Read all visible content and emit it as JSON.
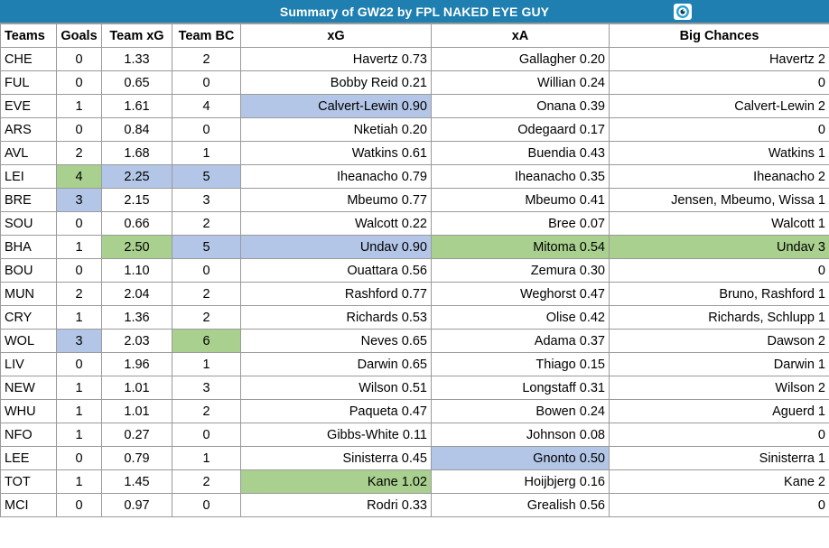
{
  "title": "Summary of GW22 by FPL NAKED EYE GUY",
  "icon": "eye-icon",
  "colors": {
    "title_bg": "#1f7fb0",
    "highlight_blue": "#b4c6e7",
    "highlight_green": "#a9d08e"
  },
  "headers": [
    "Teams",
    "Goals",
    "Team xG",
    "Team BC",
    "xG",
    "xA",
    "Big Chances"
  ],
  "rows": [
    {
      "team": "CHE",
      "goals": "0",
      "team_xg": "1.33",
      "team_bc": "2",
      "xg": "Havertz 0.73",
      "xa": "Gallagher 0.20",
      "big_chances": "Havertz 2"
    },
    {
      "team": "FUL",
      "goals": "0",
      "team_xg": "0.65",
      "team_bc": "0",
      "xg": "Bobby Reid 0.21",
      "xa": "Willian 0.24",
      "big_chances": "0"
    },
    {
      "team": "EVE",
      "goals": "1",
      "team_xg": "1.61",
      "team_bc": "4",
      "xg": "Calvert-Lewin 0.90",
      "xa": "Onana 0.39",
      "big_chances": "Calvert-Lewin 2"
    },
    {
      "team": "ARS",
      "goals": "0",
      "team_xg": "0.84",
      "team_bc": "0",
      "xg": "Nketiah 0.20",
      "xa": "Odegaard 0.17",
      "big_chances": "0"
    },
    {
      "team": "AVL",
      "goals": "2",
      "team_xg": "1.68",
      "team_bc": "1",
      "xg": "Watkins 0.61",
      "xa": "Buendia 0.43",
      "big_chances": "Watkins 1"
    },
    {
      "team": "LEI",
      "goals": "4",
      "team_xg": "2.25",
      "team_bc": "5",
      "xg": "Iheanacho 0.79",
      "xa": "Iheanacho 0.35",
      "big_chances": "Iheanacho 2"
    },
    {
      "team": "BRE",
      "goals": "3",
      "team_xg": "2.15",
      "team_bc": "3",
      "xg": "Mbeumo 0.77",
      "xa": "Mbeumo 0.41",
      "big_chances": "Jensen, Mbeumo, Wissa 1"
    },
    {
      "team": "SOU",
      "goals": "0",
      "team_xg": "0.66",
      "team_bc": "2",
      "xg": "Walcott 0.22",
      "xa": "Bree 0.07",
      "big_chances": "Walcott 1"
    },
    {
      "team": "BHA",
      "goals": "1",
      "team_xg": "2.50",
      "team_bc": "5",
      "xg": "Undav 0.90",
      "xa": "Mitoma 0.54",
      "big_chances": "Undav 3"
    },
    {
      "team": "BOU",
      "goals": "0",
      "team_xg": "1.10",
      "team_bc": "0",
      "xg": "Ouattara 0.56",
      "xa": "Zemura 0.30",
      "big_chances": "0"
    },
    {
      "team": "MUN",
      "goals": "2",
      "team_xg": "2.04",
      "team_bc": "2",
      "xg": "Rashford 0.77",
      "xa": "Weghorst 0.47",
      "big_chances": "Bruno, Rashford 1"
    },
    {
      "team": "CRY",
      "goals": "1",
      "team_xg": "1.36",
      "team_bc": "2",
      "xg": "Richards 0.53",
      "xa": "Olise 0.42",
      "big_chances": "Richards, Schlupp 1"
    },
    {
      "team": "WOL",
      "goals": "3",
      "team_xg": "2.03",
      "team_bc": "6",
      "xg": "Neves 0.65",
      "xa": "Adama 0.37",
      "big_chances": "Dawson 2"
    },
    {
      "team": "LIV",
      "goals": "0",
      "team_xg": "1.96",
      "team_bc": "1",
      "xg": "Darwin 0.65",
      "xa": "Thiago 0.15",
      "big_chances": "Darwin 1"
    },
    {
      "team": "NEW",
      "goals": "1",
      "team_xg": "1.01",
      "team_bc": "3",
      "xg": "Wilson 0.51",
      "xa": "Longstaff 0.31",
      "big_chances": "Wilson 2"
    },
    {
      "team": "WHU",
      "goals": "1",
      "team_xg": "1.01",
      "team_bc": "2",
      "xg": "Paqueta 0.47",
      "xa": "Bowen 0.24",
      "big_chances": "Aguerd 1"
    },
    {
      "team": "NFO",
      "goals": "1",
      "team_xg": "0.27",
      "team_bc": "0",
      "xg": "Gibbs-White 0.11",
      "xa": "Johnson 0.08",
      "big_chances": "0"
    },
    {
      "team": "LEE",
      "goals": "0",
      "team_xg": "0.79",
      "team_bc": "1",
      "xg": "Sinisterra 0.45",
      "xa": "Gnonto 0.50",
      "big_chances": "Sinisterra 1"
    },
    {
      "team": "TOT",
      "goals": "1",
      "team_xg": "1.45",
      "team_bc": "2",
      "xg": "Kane 1.02",
      "xa": "Hoijbjerg 0.16",
      "big_chances": "Kane 2"
    },
    {
      "team": "MCI",
      "goals": "0",
      "team_xg": "0.97",
      "team_bc": "0",
      "xg": "Rodri 0.33",
      "xa": "Grealish 0.56",
      "big_chances": "0"
    }
  ],
  "highlights": [
    {
      "row": 2,
      "col": "xg",
      "color": "blue"
    },
    {
      "row": 5,
      "col": "goals",
      "color": "green"
    },
    {
      "row": 5,
      "col": "team_xg",
      "color": "blue"
    },
    {
      "row": 5,
      "col": "team_bc",
      "color": "blue"
    },
    {
      "row": 6,
      "col": "goals",
      "color": "blue"
    },
    {
      "row": 8,
      "col": "team_xg",
      "color": "green"
    },
    {
      "row": 8,
      "col": "team_bc",
      "color": "blue"
    },
    {
      "row": 8,
      "col": "xg",
      "color": "blue"
    },
    {
      "row": 8,
      "col": "xa",
      "color": "green"
    },
    {
      "row": 8,
      "col": "big_chances",
      "color": "green"
    },
    {
      "row": 12,
      "col": "goals",
      "color": "blue"
    },
    {
      "row": 12,
      "col": "team_bc",
      "color": "green"
    },
    {
      "row": 17,
      "col": "xa",
      "color": "blue"
    },
    {
      "row": 18,
      "col": "xg",
      "color": "green"
    }
  ]
}
